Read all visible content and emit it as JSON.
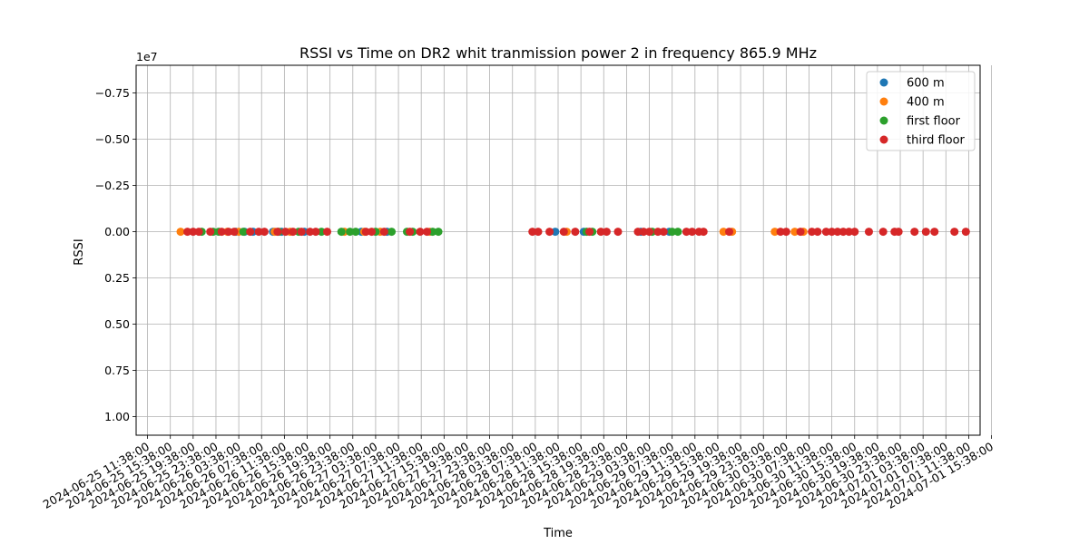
{
  "chart_data": {
    "type": "scatter",
    "title": "RSSI vs Time on DR2  whit tranmission power 2 in frequency 865.9 MHz",
    "xlabel": "Time",
    "ylabel": "RSSI",
    "y_offset_label": "1e7",
    "y_inverted": true,
    "ylim": [
      -0.9,
      1.1
    ],
    "yticks": [
      -0.75,
      -0.5,
      -0.25,
      0.0,
      0.25,
      0.5,
      0.75,
      1.0
    ],
    "ytick_labels": [
      "−0.75",
      "−0.50",
      "−0.25",
      "0.00",
      "0.25",
      "0.50",
      "0.75",
      "1.00"
    ],
    "xlim_hours": [
      -2,
      146
    ],
    "xtick_step_hours": 4,
    "xticks": [
      "2024-06-25 11:38:00",
      "2024-06-25 15:38:00",
      "2024-06-25 19:38:00",
      "2024-06-25 23:38:00",
      "2024-06-26 03:38:00",
      "2024-06-26 07:38:00",
      "2024-06-26 11:38:00",
      "2024-06-26 15:38:00",
      "2024-06-26 19:38:00",
      "2024-06-26 23:38:00",
      "2024-06-27 03:38:00",
      "2024-06-27 07:38:00",
      "2024-06-27 11:38:00",
      "2024-06-27 15:38:00",
      "2024-06-27 19:38:00",
      "2024-06-27 23:38:00",
      "2024-06-28 03:38:00",
      "2024-06-28 07:38:00",
      "2024-06-28 11:38:00",
      "2024-06-28 15:38:00",
      "2024-06-28 19:38:00",
      "2024-06-28 23:38:00",
      "2024-06-29 03:38:00",
      "2024-06-29 07:38:00",
      "2024-06-29 11:38:00",
      "2024-06-29 15:38:00",
      "2024-06-29 19:38:00",
      "2024-06-29 23:38:00",
      "2024-06-30 03:38:00",
      "2024-06-30 07:38:00",
      "2024-06-30 11:38:00",
      "2024-06-30 15:38:00",
      "2024-06-30 19:38:00",
      "2024-06-30 23:38:00",
      "2024-07-01 03:38:00",
      "2024-07-01 07:38:00",
      "2024-07-01 11:38:00",
      "2024-07-01 15:38:00"
    ],
    "grid": true,
    "legend_position": "top-right",
    "series": [
      {
        "name": "600 m",
        "color": "#1f77b4",
        "x_hours": [
          15.5,
          17,
          18.5,
          22,
          23.5,
          27.5,
          37.5,
          42,
          71.5,
          76.5,
          86.5,
          91.5
        ]
      },
      {
        "name": "400 m",
        "color": "#ff7f0e",
        "x_hours": [
          5.8,
          14,
          16,
          22.3,
          25,
          34.5,
          38,
          40.8,
          49.5,
          73.5,
          101,
          102.5,
          110,
          113.5,
          115
        ]
      },
      {
        "name": "first floor",
        "color": "#2ca02c",
        "x_hours": [
          9.5,
          11.5,
          12.5,
          16.8,
          23,
          26.5,
          30.5,
          34,
          35.5,
          36.5,
          40,
          42.8,
          45.5,
          46.5,
          50,
          51,
          77,
          78,
          88.5,
          92,
          93
        ]
      },
      {
        "name": "third floor",
        "color": "#d62728",
        "x_hours": [
          7,
          8,
          9,
          11,
          13,
          14.2,
          15.2,
          18,
          19.5,
          20.5,
          22.8,
          24.2,
          25.5,
          27,
          28.5,
          29.5,
          31.5,
          38.3,
          39.3,
          41.5,
          46,
          47.8,
          49,
          67.5,
          68.5,
          70.5,
          73,
          75,
          77.5,
          79.5,
          80.5,
          82.5,
          86,
          87,
          88,
          89.5,
          90.5,
          94.5,
          95.5,
          96.7,
          97.5,
          102,
          111,
          112,
          114.5,
          116.5,
          117.5,
          119,
          120,
          121,
          122,
          123,
          124,
          126.5,
          129,
          131,
          131.7,
          134.5,
          136.5,
          138,
          141.5,
          143.5
        ]
      }
    ]
  }
}
